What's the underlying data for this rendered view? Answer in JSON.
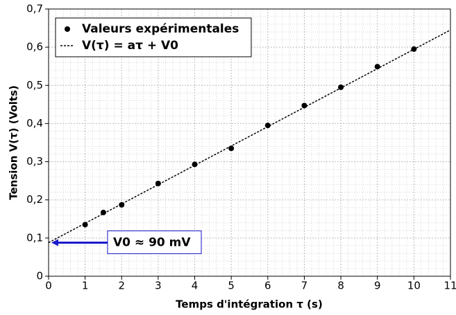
{
  "chart_data": {
    "type": "scatter",
    "xlabel": "Temps d'intégration τ (s)",
    "ylabel": "Tension V(τ) (Volts)",
    "xlim": [
      0,
      11
    ],
    "ylim": [
      0,
      0.7
    ],
    "xticks": [
      0,
      1,
      2,
      3,
      4,
      5,
      6,
      7,
      8,
      9,
      10,
      11
    ],
    "yticks": [
      0,
      {
        "value": 0.1,
        "label": "0,1"
      },
      {
        "value": 0.2,
        "label": "0,2"
      },
      {
        "value": 0.3,
        "label": "0,3"
      },
      {
        "value": 0.4,
        "label": "0,4"
      },
      {
        "value": 0.5,
        "label": "0,5"
      },
      {
        "value": 0.6,
        "label": "0,6"
      },
      {
        "value": 0.7,
        "label": "0,7"
      }
    ],
    "grid": true,
    "legend": "upper left",
    "series": [
      {
        "name": "Valeurs expérimentales",
        "color": "#000000",
        "mark": "point",
        "x": [
          1,
          1.5,
          2,
          3,
          4,
          5,
          6,
          7,
          8,
          9,
          10
        ],
        "values": [
          0.135,
          0.167,
          0.187,
          0.243,
          0.293,
          0.335,
          0.395,
          0.447,
          0.495,
          0.549,
          0.595
        ]
      },
      {
        "name": "V(τ) = aτ + V0",
        "color": "#000000",
        "mark": "dashed-line",
        "x": [
          0,
          11
        ],
        "values": [
          0.088,
          0.645
        ]
      }
    ],
    "annotation": {
      "text": "V0 ≈ 90 mV",
      "x": 0,
      "y": 0.088,
      "color": "#1a1acc"
    }
  }
}
